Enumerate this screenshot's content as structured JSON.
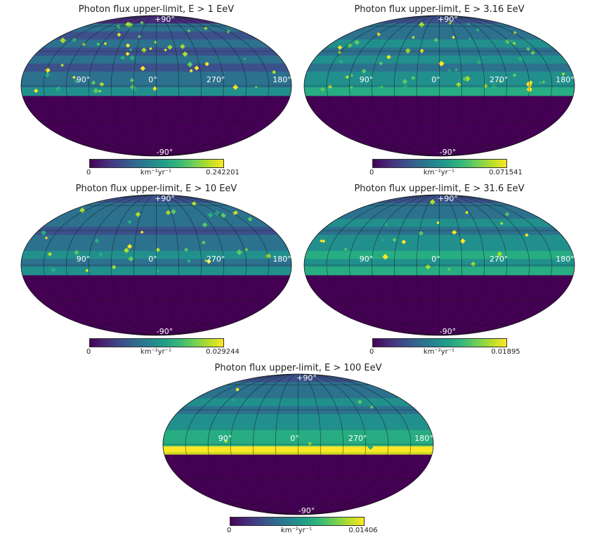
{
  "colors": {
    "low": "#440154",
    "band_mid": "#31688e",
    "band_green": "#1f9e89",
    "high": "#fde725"
  },
  "panels": [
    {
      "title": "Photon flux upper-limit, E > 1 EeV",
      "colorbar": {
        "min": "0",
        "max": "0.242201",
        "unit": "km⁻²yr⁻¹"
      },
      "labels": {
        "top": "+90°",
        "bottom": "-90°",
        "l90": "90°",
        "l0": "0°",
        "l270": "270°",
        "l180": "180°"
      },
      "spot_density": 60
    },
    {
      "title": "Photon flux upper-limit, E > 3.16 EeV",
      "colorbar": {
        "min": "0",
        "max": "0.071541",
        "unit": "km⁻²yr⁻¹"
      },
      "labels": {
        "top": "+90°",
        "bottom": "-90°",
        "l90": "90°",
        "l0": "0°",
        "l270": "270°",
        "l180": "180°"
      },
      "spot_density": 65
    },
    {
      "title": "Photon flux upper-limit, E > 10 EeV",
      "colorbar": {
        "min": "0",
        "max": "0.029244",
        "unit": "km⁻²yr⁻¹"
      },
      "labels": {
        "top": "+90°",
        "bottom": "-90°",
        "l90": "90°",
        "l0": "0°",
        "l270": "270°",
        "l180": "180°"
      },
      "spot_density": 45
    },
    {
      "title": "Photon flux upper-limit, E > 31.6 EeV",
      "colorbar": {
        "min": "0",
        "max": "0.01895",
        "unit": "km⁻²yr⁻¹"
      },
      "labels": {
        "top": "+90°",
        "bottom": "-90°",
        "l90": "90°",
        "l0": "0°",
        "l270": "270°",
        "l180": "180°"
      },
      "spot_density": 25
    },
    {
      "title": "Photon flux upper-limit, E > 100 EeV",
      "colorbar": {
        "min": "0",
        "max": "0.01406",
        "unit": "km⁻²yr⁻¹"
      },
      "labels": {
        "top": "+90°",
        "bottom": "-90°",
        "l90": "90°",
        "l0": "0°",
        "l270": "270°",
        "l180": "180°"
      },
      "spot_density": 12
    }
  ],
  "chart_data": [
    {
      "type": "heatmap",
      "projection": "mollweide",
      "title": "Photon flux upper-limit, E > 1 EeV",
      "colorscale": "viridis",
      "value_range": [
        0,
        0.242201
      ],
      "unit": "km⁻²yr⁻¹",
      "lon_tick_labels": [
        "90°",
        "0°",
        "270°",
        "180°"
      ],
      "lat_tick_labels": [
        "+90°",
        "-90°"
      ]
    },
    {
      "type": "heatmap",
      "projection": "mollweide",
      "title": "Photon flux upper-limit, E > 3.16 EeV",
      "colorscale": "viridis",
      "value_range": [
        0,
        0.071541
      ],
      "unit": "km⁻²yr⁻¹",
      "lon_tick_labels": [
        "90°",
        "0°",
        "270°",
        "180°"
      ],
      "lat_tick_labels": [
        "+90°",
        "-90°"
      ]
    },
    {
      "type": "heatmap",
      "projection": "mollweide",
      "title": "Photon flux upper-limit, E > 10 EeV",
      "colorscale": "viridis",
      "value_range": [
        0,
        0.029244
      ],
      "unit": "km⁻²yr⁻¹",
      "lon_tick_labels": [
        "90°",
        "0°",
        "270°",
        "180°"
      ],
      "lat_tick_labels": [
        "+90°",
        "-90°"
      ]
    },
    {
      "type": "heatmap",
      "projection": "mollweide",
      "title": "Photon flux upper-limit, E > 31.6 EeV",
      "colorscale": "viridis",
      "value_range": [
        0,
        0.01895
      ],
      "unit": "km⁻²yr⁻¹",
      "lon_tick_labels": [
        "90°",
        "0°",
        "270°",
        "180°"
      ],
      "lat_tick_labels": [
        "+90°",
        "-90°"
      ]
    },
    {
      "type": "heatmap",
      "projection": "mollweide",
      "title": "Photon flux upper-limit, E > 100 EeV",
      "colorscale": "viridis",
      "value_range": [
        0,
        0.01406
      ],
      "unit": "km⁻²yr⁻¹",
      "lon_tick_labels": [
        "90°",
        "0°",
        "270°",
        "180°"
      ],
      "lat_tick_labels": [
        "+90°",
        "-90°"
      ]
    }
  ]
}
